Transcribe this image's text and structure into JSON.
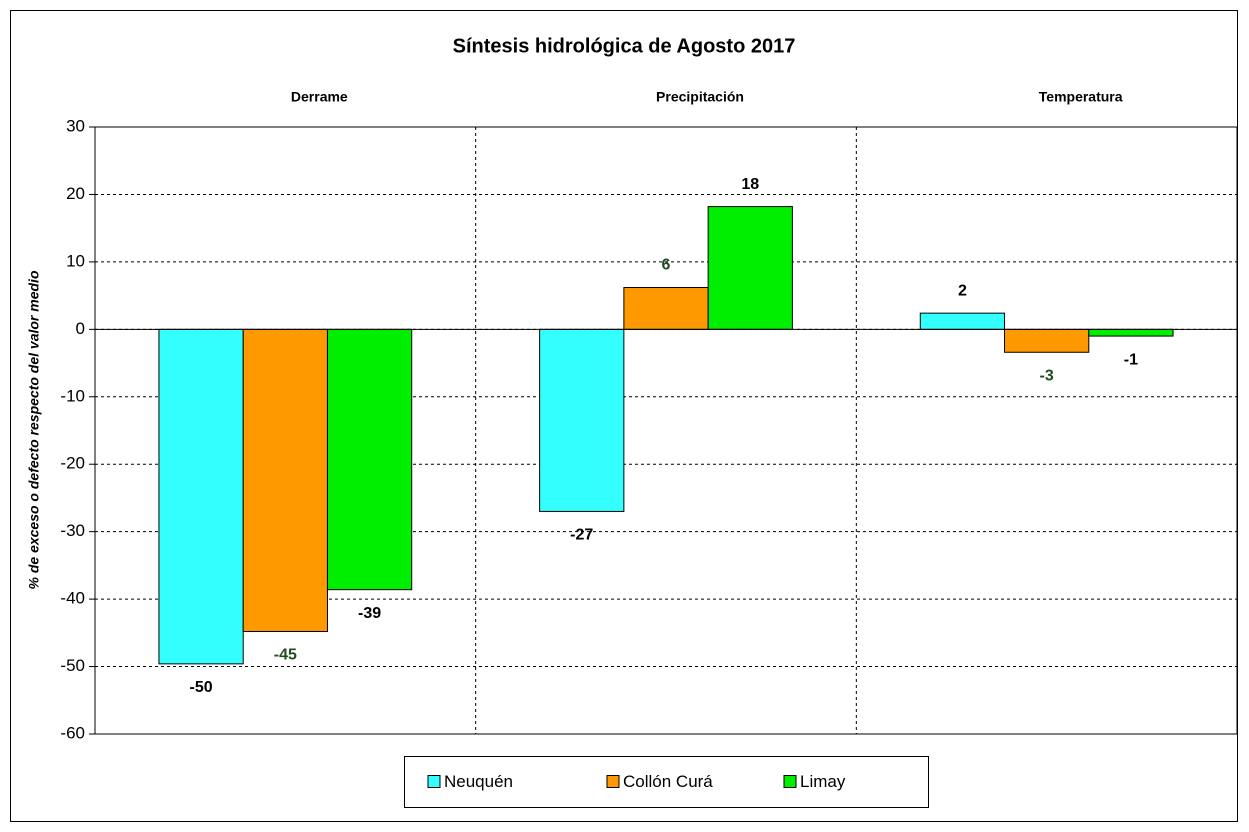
{
  "chart_data": {
    "type": "bar",
    "title": "Síntesis hidrológica de Agosto 2017",
    "y_label": "% de exceso o defecto respecto del valor medio",
    "categories": [
      "Derrame",
      "Precipitación",
      "Temperatura"
    ],
    "series": [
      {
        "name": "Neuquén",
        "color": "#33ffff",
        "values": [
          -49.6,
          -27.0,
          2.4
        ],
        "value_labels": [
          "-50",
          "-27",
          "2"
        ],
        "label_color": "#000000"
      },
      {
        "name": "Collón Curá",
        "color": "#ff9900",
        "values": [
          -44.8,
          6.2,
          -3.4
        ],
        "value_labels": [
          "-45",
          "6",
          "-3"
        ],
        "label_color": "#1f4d1f"
      },
      {
        "name": "Limay",
        "color": "#00ee00",
        "values": [
          -38.6,
          18.2,
          -1.0
        ],
        "value_labels": [
          "-39",
          "18",
          "-1"
        ],
        "label_color": "#000000"
      }
    ],
    "ylim": [
      -60,
      30
    ],
    "yticks": [
      -60,
      -50,
      -40,
      -30,
      -20,
      -10,
      0,
      10,
      20,
      30
    ],
    "grid": true,
    "legend": "bottom"
  }
}
